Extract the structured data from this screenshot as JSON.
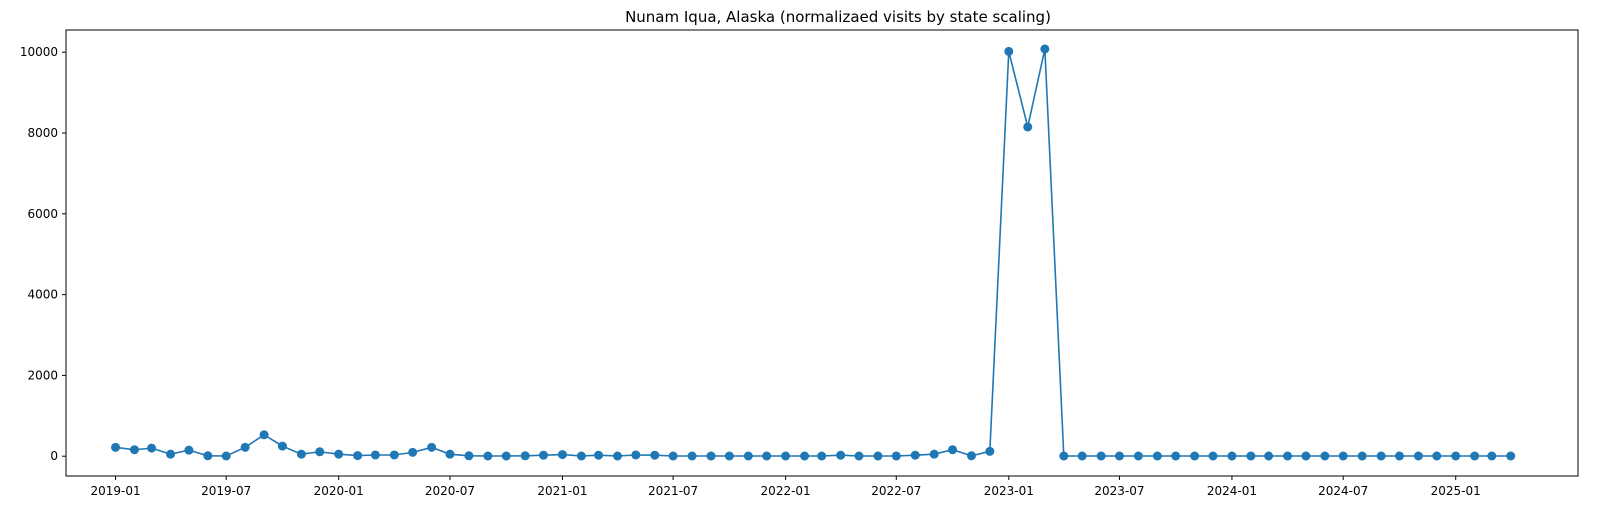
{
  "chart_data": {
    "type": "line",
    "title": "Nunam Iqua, Alaska (normalizaed visits by state scaling)",
    "xlabel": "",
    "ylabel": "",
    "x_start": "2019-01",
    "x_ticks": [
      "2019-01",
      "2019-07",
      "2020-01",
      "2020-07",
      "2021-01",
      "2021-07",
      "2022-01",
      "2022-07",
      "2023-01",
      "2023-07",
      "2024-01",
      "2024-07",
      "2025-01"
    ],
    "y_ticks": [
      "0",
      "2000",
      "4000",
      "6000",
      "8000",
      "10000"
    ],
    "ylim": [
      -490,
      10550
    ],
    "xlim": [
      "2018-10-12",
      "2025-07-20"
    ],
    "grid": false,
    "series_color": "#1f77b4",
    "x": [
      "2019-01",
      "2019-02",
      "2019-03",
      "2019-04",
      "2019-05",
      "2019-06",
      "2019-07",
      "2019-08",
      "2019-09",
      "2019-10",
      "2019-11",
      "2019-12",
      "2020-01",
      "2020-02",
      "2020-03",
      "2020-04",
      "2020-05",
      "2020-06",
      "2020-07",
      "2020-08",
      "2020-09",
      "2020-10",
      "2020-11",
      "2020-12",
      "2021-01",
      "2021-02",
      "2021-03",
      "2021-04",
      "2021-05",
      "2021-06",
      "2021-07",
      "2021-08",
      "2021-09",
      "2021-10",
      "2021-11",
      "2021-12",
      "2022-01",
      "2022-02",
      "2022-03",
      "2022-04",
      "2022-05",
      "2022-06",
      "2022-07",
      "2022-08",
      "2022-09",
      "2022-10",
      "2022-11",
      "2022-12",
      "2023-01",
      "2023-02",
      "2023-03",
      "2023-04",
      "2023-05",
      "2023-06",
      "2023-07",
      "2023-08",
      "2023-09",
      "2023-10",
      "2023-11",
      "2023-12",
      "2024-01",
      "2024-02",
      "2024-03",
      "2024-04",
      "2024-05",
      "2024-06",
      "2024-07",
      "2024-08",
      "2024-09",
      "2024-10",
      "2024-11",
      "2024-12",
      "2025-01",
      "2025-02",
      "2025-03",
      "2025-04"
    ],
    "values": [
      220,
      160,
      200,
      50,
      150,
      10,
      5,
      220,
      530,
      250,
      50,
      110,
      50,
      15,
      30,
      30,
      95,
      220,
      50,
      10,
      5,
      5,
      10,
      25,
      40,
      5,
      25,
      5,
      30,
      25,
      5,
      5,
      5,
      5,
      5,
      5,
      5,
      5,
      5,
      25,
      5,
      5,
      5,
      25,
      50,
      160,
      10,
      120,
      10020,
      8150,
      10080,
      5,
      5,
      5,
      5,
      5,
      5,
      5,
      5,
      5,
      5,
      5,
      5,
      5,
      5,
      5,
      5,
      5,
      5,
      5,
      5,
      5,
      5,
      5,
      5,
      5
    ]
  }
}
